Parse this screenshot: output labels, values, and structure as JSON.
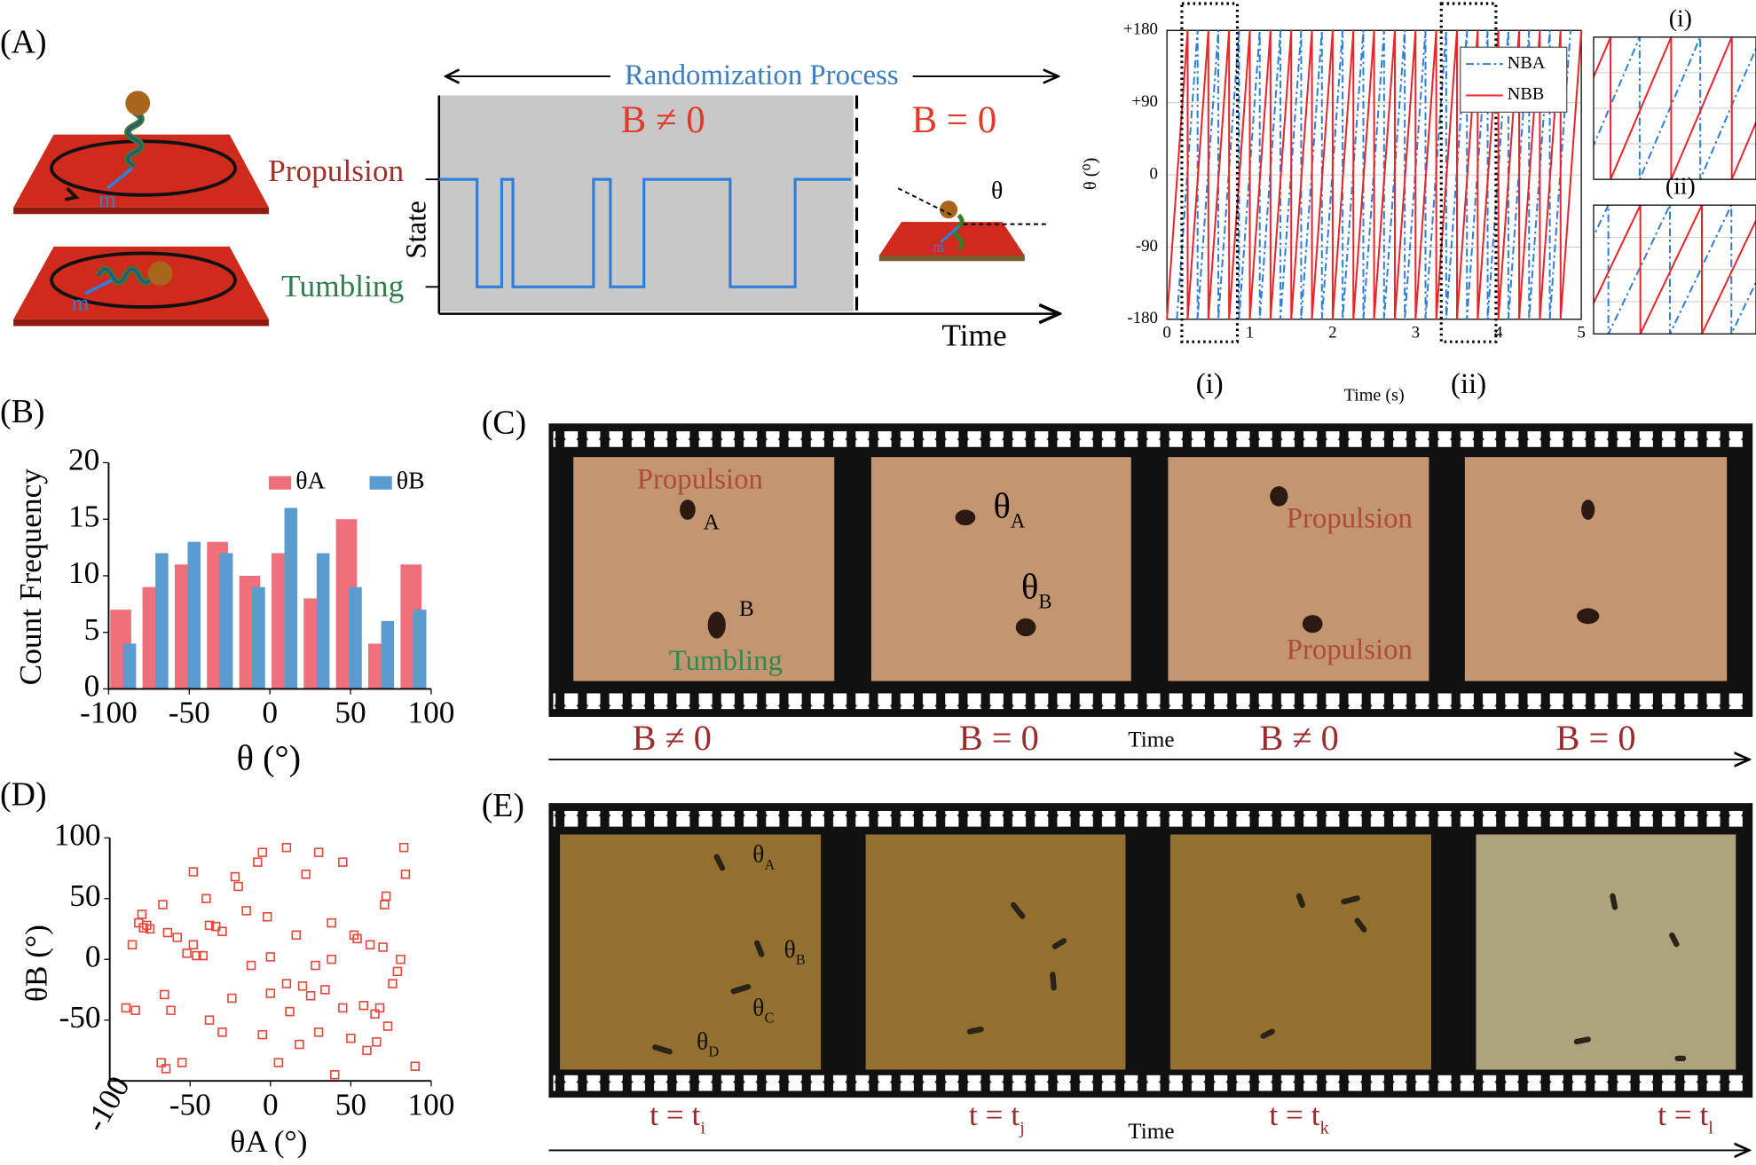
{
  "panel_labels": [
    "(A)",
    "(B)",
    "(C)",
    "(D)",
    "(E)"
  ],
  "panel_a": {
    "propulsion": "Propulsion",
    "tumbling": "Tumbling",
    "moment": "m",
    "process": "Randomization Process",
    "field_on": "B ≠ 0",
    "field_off": "B = 0",
    "state_axis": "State",
    "time_axis": "Time",
    "angle": "θ"
  },
  "chart_data": [
    {
      "type": "line",
      "ylabel": "θ (⁰)",
      "xlabel": "Time (s)",
      "xlim": [
        0,
        5
      ],
      "xticks": [
        0,
        1,
        2,
        3,
        4,
        5
      ],
      "ylim": [
        -180,
        180
      ],
      "yticks": [
        {
          "value": 180,
          "label": "+180"
        },
        {
          "value": 90,
          "label": "+90"
        },
        0,
        -90,
        -180
      ],
      "grid": true,
      "legend": "top-right",
      "highlights": [
        {
          "label": "(i)",
          "xlim": [
            0.18,
            0.85
          ]
        },
        {
          "label": "(ii)",
          "xlim": [
            3.31,
            3.97
          ]
        }
      ],
      "series": [
        {
          "name": "NBA",
          "color": "#2f7fd8",
          "dash": true,
          "x": [
            0.12,
            0.37,
            0.37,
            0.62,
            0.62,
            0.87,
            0.87,
            1.12,
            1.12,
            1.37,
            1.37,
            1.62,
            1.62,
            1.87,
            1.87,
            2.12,
            2.12,
            2.37,
            2.37,
            2.62,
            2.62,
            2.87,
            2.87,
            3.12,
            3.12,
            3.37,
            3.37,
            3.62,
            3.62,
            3.87,
            3.87,
            4.12,
            4.12,
            4.37,
            4.37,
            4.62,
            4.62,
            4.87
          ],
          "values": [
            -180,
            180,
            -180,
            180,
            -180,
            180,
            -180,
            180,
            -180,
            180,
            -180,
            180,
            -180,
            180,
            -180,
            180,
            -180,
            180,
            -180,
            180,
            -180,
            180,
            -180,
            180,
            -180,
            180,
            -180,
            180,
            -180,
            180,
            -180,
            180,
            -180,
            180,
            -180,
            180,
            -180,
            180
          ]
        },
        {
          "name": "NBB",
          "color": "#e8262a",
          "dash": false,
          "x": [
            0,
            0.25,
            0.25,
            0.5,
            0.5,
            0.75,
            0.75,
            1,
            1,
            1.25,
            1.25,
            1.5,
            1.5,
            1.75,
            1.75,
            2,
            2,
            2.25,
            2.25,
            2.5,
            2.5,
            2.75,
            2.75,
            3,
            3,
            3.25,
            3.25,
            3.5,
            3.5,
            3.75,
            3.75,
            4,
            4,
            4.25,
            4.25,
            4.5,
            4.5,
            4.75,
            4.75,
            5
          ],
          "values": [
            -180,
            180,
            -180,
            180,
            -180,
            180,
            -180,
            180,
            -180,
            180,
            -180,
            180,
            -180,
            180,
            -180,
            180,
            -180,
            180,
            -180,
            180,
            -180,
            180,
            -180,
            180,
            -180,
            180,
            -180,
            180,
            -180,
            180,
            -180,
            180,
            -180,
            180,
            -180,
            180,
            -180,
            180,
            -180,
            180
          ]
        }
      ]
    },
    {
      "type": "bar",
      "ylabel": "Count Frequency",
      "xlabel": "θ (°)",
      "x": [
        -90,
        -70,
        -50,
        -30,
        -10,
        10,
        30,
        50,
        70,
        90
      ],
      "xlim": [
        -100,
        100
      ],
      "xticks": [
        -100,
        -50,
        0,
        50,
        100
      ],
      "ylim": [
        0,
        20
      ],
      "yticks": [
        0,
        5,
        10,
        15,
        20
      ],
      "legend": "top-right",
      "series": [
        {
          "name": "θA",
          "color": "#ef6f7a",
          "values": [
            7,
            9,
            11,
            13,
            10,
            12,
            8,
            15,
            4,
            11
          ]
        },
        {
          "name": "θB",
          "color": "#5a9bd0",
          "values": [
            4,
            12,
            13,
            12,
            9,
            16,
            12,
            9,
            6,
            7
          ]
        }
      ]
    },
    {
      "type": "scatter",
      "ylabel": "θB (°)",
      "xlabel": "θA (°)",
      "color": "#e8483a",
      "marker": "square",
      "xlim": [
        -100,
        100
      ],
      "xticks": [
        -100,
        -50,
        0,
        50,
        100
      ],
      "ylim": [
        -100,
        100
      ],
      "yticks": [
        -50,
        0,
        50,
        100
      ],
      "x": [
        -80,
        -82,
        -79,
        -77,
        -75,
        -86,
        -90,
        -84,
        -66,
        -62,
        -68,
        -65,
        -55,
        -67,
        -64,
        -58,
        -52,
        -48,
        -46,
        -42,
        -48,
        -40,
        -38,
        -34,
        -30,
        -38,
        -30,
        -24,
        -22,
        -20,
        -5,
        -8,
        -12,
        -2,
        0,
        0,
        -5,
        10,
        5,
        12,
        18,
        16,
        20,
        25,
        22,
        28,
        30,
        34,
        30,
        38,
        38,
        40,
        45,
        45,
        50,
        52,
        54,
        58,
        60,
        62,
        66,
        65,
        68,
        70,
        72,
        71,
        73,
        76,
        79,
        81,
        83,
        84,
        90,
        -15,
        10
      ],
      "values": [
        37,
        30,
        26,
        28,
        25,
        12,
        -40,
        -42,
        -29,
        -42,
        -85,
        -90,
        -85,
        45,
        22,
        18,
        5,
        12,
        3,
        3,
        72,
        50,
        28,
        27,
        23,
        -50,
        -60,
        -32,
        68,
        60,
        88,
        80,
        -5,
        35,
        2,
        -28,
        -62,
        92,
        -85,
        -43,
        -70,
        20,
        -22,
        -30,
        70,
        -5,
        -60,
        -25,
        88,
        30,
        0,
        -95,
        -40,
        80,
        -65,
        20,
        17,
        -38,
        -75,
        12,
        -68,
        -45,
        -40,
        10,
        52,
        45,
        -55,
        -20,
        -10,
        0,
        92,
        70,
        -88,
        40,
        -20
      ]
    }
  ],
  "panel_c": {
    "propulsion": "Propulsion",
    "particle_a": "A",
    "particle_b": "B",
    "tumbling": "Tumbling",
    "theta_a": {
      "symbol": "θ",
      "sub": "A"
    },
    "theta_b": {
      "symbol": "θ",
      "sub": "B"
    },
    "fields": [
      "B ≠ 0",
      "B = 0",
      "B ≠ 0",
      "B = 0"
    ],
    "time": "Time"
  },
  "panel_e": {
    "angles": [
      {
        "symbol": "θ",
        "sub": "A"
      },
      {
        "symbol": "θ",
        "sub": "B"
      },
      {
        "symbol": "θ",
        "sub": "C"
      },
      {
        "symbol": "θ",
        "sub": "D"
      }
    ],
    "times": [
      {
        "symbol": "t = t",
        "sub": "i"
      },
      {
        "symbol": "t = t",
        "sub": "j"
      },
      {
        "symbol": "t = t",
        "sub": "k"
      },
      {
        "symbol": "t = t",
        "sub": "l"
      }
    ],
    "time": "Time"
  }
}
